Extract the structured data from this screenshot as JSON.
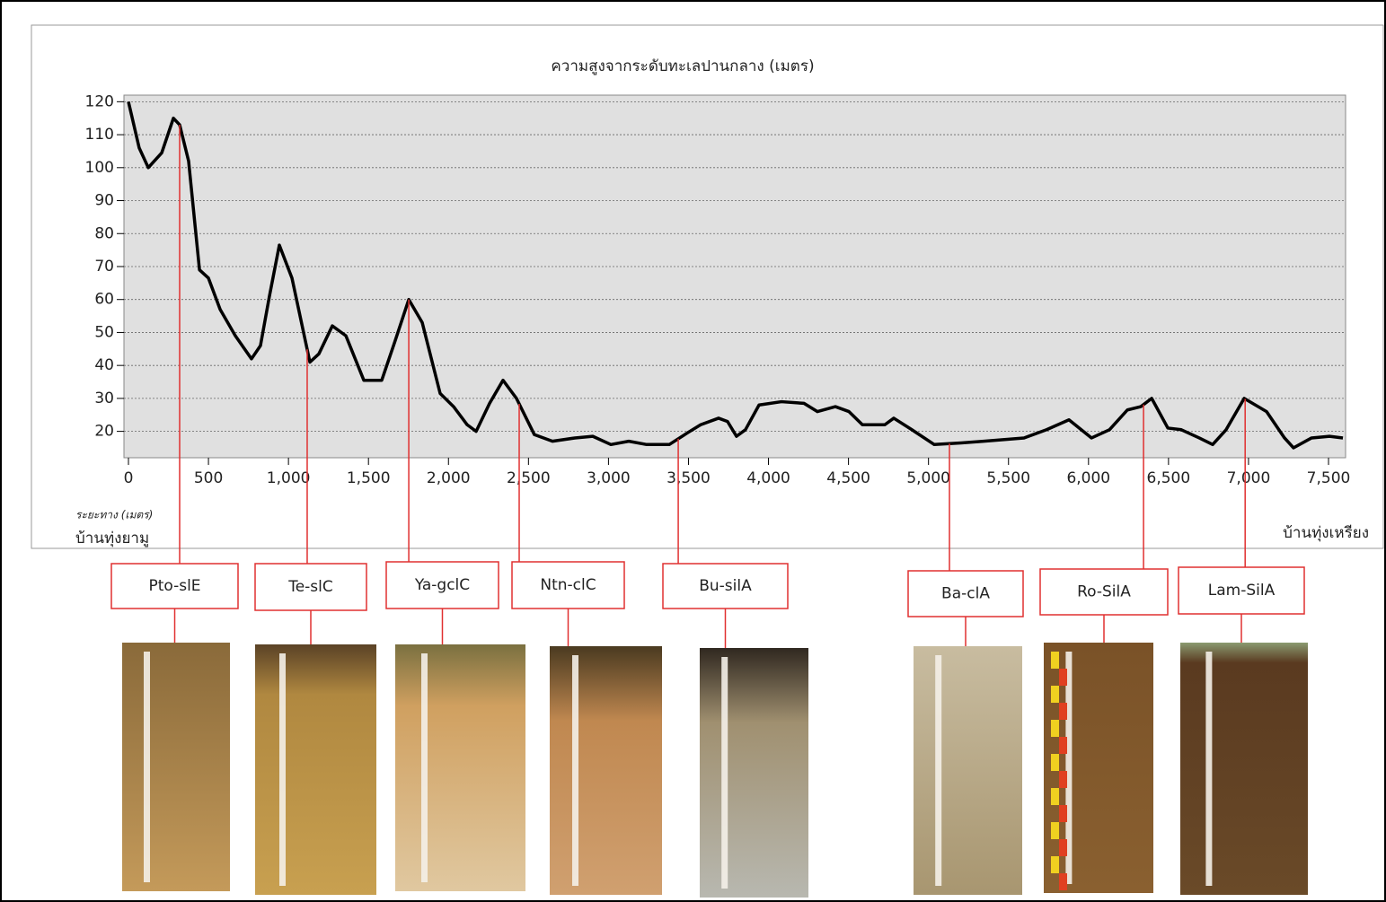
{
  "chart_data": {
    "type": "line",
    "title": "ความสูงจากระดับทะเลปานกลาง (เมตร)",
    "x_label": "ระยะทาง (เมตร)",
    "start_label": "บ้านทุ่งยามู",
    "end_label": "บ้านทุ่งเหรียง",
    "x": [
      0,
      67,
      124,
      208,
      281,
      320,
      376,
      444,
      500,
      573,
      668,
      769,
      825,
      881,
      943,
      1022,
      1134,
      1190,
      1274,
      1359,
      1471,
      1583,
      1667,
      1752,
      1836,
      1948,
      2032,
      2117,
      2173,
      2257,
      2341,
      2425,
      2537,
      2650,
      2790,
      2902,
      3015,
      3127,
      3239,
      3380,
      3492,
      3576,
      3688,
      3744,
      3800,
      3856,
      3941,
      4081,
      4222,
      4306,
      4418,
      4503,
      4587,
      4727,
      4783,
      4896,
      5036,
      5204,
      5345,
      5597,
      5738,
      5878,
      6019,
      6131,
      6243,
      6327,
      6395,
      6496,
      6580,
      6692,
      6776,
      6860,
      6973,
      7113,
      7225,
      7281,
      7394,
      7506,
      7590
    ],
    "values": [
      120,
      106,
      100,
      104.5,
      115,
      113,
      102,
      69,
      66.5,
      57,
      49,
      42,
      46,
      61,
      76.5,
      66.5,
      41,
      43.5,
      52,
      49,
      35.5,
      35.5,
      47.5,
      60,
      53,
      31.5,
      27.5,
      22,
      20,
      28.5,
      35.5,
      30,
      19,
      17,
      18,
      18.5,
      16,
      17,
      16,
      16,
      19.5,
      22,
      24,
      23,
      18.5,
      20.5,
      28,
      29,
      28.5,
      26,
      27.5,
      26,
      22,
      22,
      24,
      20.5,
      16,
      16.5,
      17,
      18,
      20.5,
      23.5,
      18,
      20.5,
      26.5,
      27.5,
      30,
      21,
      20.5,
      18,
      16,
      20.5,
      30,
      26,
      18,
      15,
      18,
      18.5,
      18
    ],
    "color": "#000000",
    "xlim": [
      0,
      7600
    ],
    "ylim": [
      12,
      122
    ],
    "xticks": [
      0,
      500,
      {
        "value": 1000,
        "label": "1,000"
      },
      {
        "value": 1500,
        "label": "1,500"
      },
      {
        "value": 2000,
        "label": "2,000"
      },
      {
        "value": 2500,
        "label": "2,500"
      },
      {
        "value": 3000,
        "label": "3,000"
      },
      {
        "value": 3500,
        "label": "3,500"
      },
      {
        "value": 4000,
        "label": "4,000"
      },
      {
        "value": 4500,
        "label": "4,500"
      },
      {
        "value": 5000,
        "label": "5,000"
      },
      {
        "value": 5500,
        "label": "5,500"
      },
      {
        "value": 6000,
        "label": "6,000"
      },
      {
        "value": 6500,
        "label": "6,500"
      },
      {
        "value": 7000,
        "label": "7,000"
      },
      {
        "value": 7500,
        "label": "7,500"
      }
    ],
    "yticks": [
      20,
      30,
      40,
      50,
      60,
      70,
      80,
      90,
      100,
      110,
      120
    ],
    "grid": true,
    "sites": [
      {
        "label": "Pto-slE",
        "x": 320
      },
      {
        "label": "Te-slC",
        "x": 1117
      },
      {
        "label": "Ya-gclC",
        "x": 1752
      },
      {
        "label": "Ntn-clC",
        "x": 2442
      },
      {
        "label": "Bu-silA",
        "x": 3436
      },
      {
        "label": "Ba-clA",
        "x": 5131
      },
      {
        "label": "Ro-SilA",
        "x": 6344
      },
      {
        "label": "Lam-SilA",
        "x": 6979
      }
    ],
    "site_color": "#e03030"
  }
}
